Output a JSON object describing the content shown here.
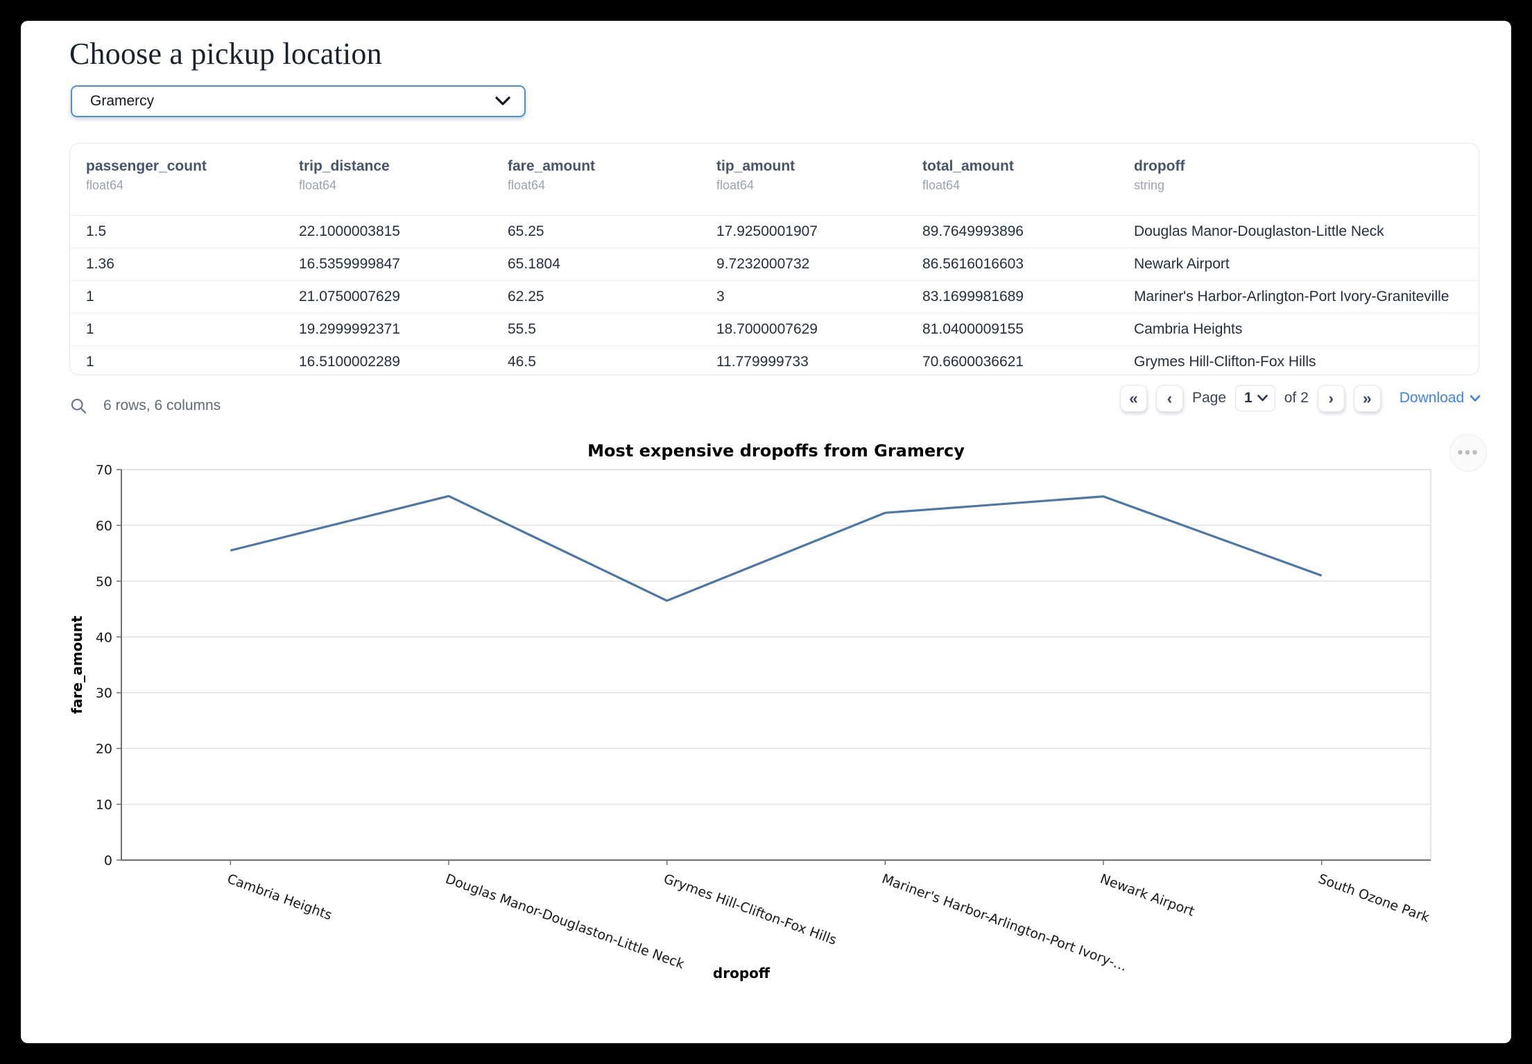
{
  "header": {
    "title": "Choose a pickup location"
  },
  "pickup_select": {
    "value": "Gramercy"
  },
  "table": {
    "columns": [
      {
        "name": "passenger_count",
        "type": "float64"
      },
      {
        "name": "trip_distance",
        "type": "float64"
      },
      {
        "name": "fare_amount",
        "type": "float64"
      },
      {
        "name": "tip_amount",
        "type": "float64"
      },
      {
        "name": "total_amount",
        "type": "float64"
      },
      {
        "name": "dropoff",
        "type": "string"
      }
    ],
    "rows": [
      [
        "1.5",
        "22.1000003815",
        "65.25",
        "17.9250001907",
        "89.7649993896",
        "Douglas Manor-Douglaston-Little Neck"
      ],
      [
        "1.36",
        "16.5359999847",
        "65.1804",
        "9.7232000732",
        "86.5616016603",
        "Newark Airport"
      ],
      [
        "1",
        "21.0750007629",
        "62.25",
        "3",
        "83.1699981689",
        "Mariner's Harbor-Arlington-Port Ivory-Graniteville"
      ],
      [
        "1",
        "19.2999992371",
        "55.5",
        "18.7000007629",
        "81.0400009155",
        "Cambria Heights"
      ],
      [
        "1",
        "16.5100002289",
        "46.5",
        "11.779999733",
        "70.6600036621",
        "Grymes Hill-Clifton-Fox Hills"
      ]
    ],
    "summary": "6 rows, 6 columns"
  },
  "pagination": {
    "first_icon": "«",
    "prev_icon": "‹",
    "page_label": "Page",
    "page_value": "1",
    "total_label": "of 2",
    "next_icon": "›",
    "last_icon": "»",
    "download_label": "Download"
  },
  "chart_menu_icon": "•••",
  "chart_data": {
    "type": "line",
    "title": "Most expensive dropoffs from Gramercy",
    "xlabel": "dropoff",
    "ylabel": "fare_amount",
    "ylim": [
      0,
      70
    ],
    "yticks": [
      0,
      10,
      20,
      30,
      40,
      50,
      60,
      70
    ],
    "grid": true,
    "legend": "none",
    "x_label_angle_deg": 20,
    "categories": [
      "Cambria Heights",
      "Douglas Manor-Douglaston-Little Neck",
      "Grymes Hill-Clifton-Fox Hills",
      "Mariner's Harbor-Arlington-Port Ivory-…",
      "Newark Airport",
      "South Ozone Park"
    ],
    "values": [
      55.5,
      65.25,
      46.5,
      62.25,
      65.1804,
      51
    ],
    "line_color": "#4c78a8"
  },
  "colors": {
    "accent_blue": "#3b82f6",
    "select_border": "#4a90d9",
    "line": "#4c78a8",
    "grid": "#e2e2e2",
    "axis": "#6f6f6f",
    "view_border": "#dddddd"
  }
}
